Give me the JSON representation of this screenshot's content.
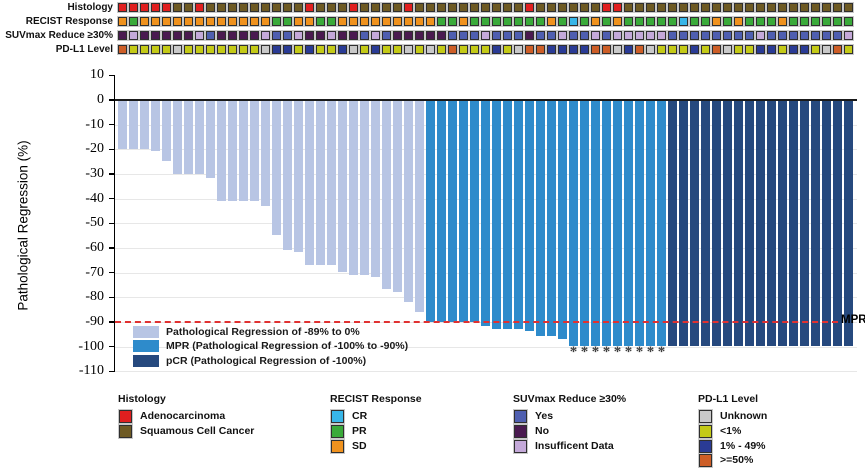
{
  "figure": {
    "y_axis_title": "Pathological Regression (%)",
    "mpr_line_label": "MPR",
    "asterisk_symbol": "*"
  },
  "tracks": {
    "labels": [
      "Histology",
      "RECIST Response",
      "SUVmax Reduce ≥30%",
      "PD-L1 Level"
    ]
  },
  "colors": {
    "histology": {
      "A": "#e01f1f",
      "S": "#6e5a23"
    },
    "recist": {
      "CR": "#38b6e8",
      "PR": "#3aaa3a",
      "SD": "#f0921e"
    },
    "suvmax": {
      "Y": "#4f5fb0",
      "N": "#4a1a50",
      "I": "#c4a9d9"
    },
    "pdl1": {
      "U": "#c9c9c9",
      "L": "#c4ca17",
      "M": "#2a3b95",
      "H": "#cd5e27"
    },
    "bar_light": "#b8c5e4",
    "bar_mpr": "#2e8bcb",
    "bar_pcr": "#26497e",
    "reference_line": "#e03131",
    "zero_line": "#1a1a1a"
  },
  "chart_data": {
    "type": "bar",
    "title": "",
    "xlabel": "",
    "ylabel": "Pathological Regression (%)",
    "ylim": [
      -110,
      10
    ],
    "yticks": [
      10,
      0,
      -10,
      -20,
      -30,
      -40,
      -50,
      -60,
      -70,
      -80,
      -90,
      -100,
      -110
    ],
    "grid": true,
    "reference_line": {
      "value": -90,
      "label": "MPR",
      "style": "dashed"
    },
    "n_patients": 67,
    "histology": [
      "A",
      "A",
      "A",
      "A",
      "A",
      "S",
      "S",
      "A",
      "S",
      "S",
      "S",
      "S",
      "S",
      "S",
      "S",
      "S",
      "S",
      "A",
      "S",
      "S",
      "S",
      "A",
      "S",
      "S",
      "S",
      "S",
      "A",
      "S",
      "S",
      "S",
      "S",
      "S",
      "S",
      "S",
      "S",
      "S",
      "S",
      "A",
      "S",
      "S",
      "S",
      "S",
      "S",
      "S",
      "A",
      "A",
      "S",
      "S",
      "S",
      "S",
      "S",
      "S",
      "S",
      "S",
      "S",
      "S",
      "S",
      "S",
      "S",
      "S",
      "S",
      "S",
      "S",
      "S",
      "S",
      "S",
      "S"
    ],
    "recist": [
      "SD",
      "PR",
      "SD",
      "SD",
      "SD",
      "SD",
      "SD",
      "SD",
      "SD",
      "SD",
      "SD",
      "SD",
      "SD",
      "SD",
      "PR",
      "PR",
      "SD",
      "SD",
      "PR",
      "PR",
      "SD",
      "SD",
      "SD",
      "SD",
      "SD",
      "SD",
      "SD",
      "SD",
      "SD",
      "PR",
      "PR",
      "SD",
      "PR",
      "PR",
      "PR",
      "PR",
      "PR",
      "PR",
      "PR",
      "SD",
      "PR",
      "CR",
      "PR",
      "SD",
      "PR",
      "SD",
      "PR",
      "PR",
      "PR",
      "PR",
      "PR",
      "CR",
      "PR",
      "PR",
      "SD",
      "PR",
      "SD",
      "PR",
      "PR",
      "PR",
      "SD",
      "PR",
      "PR",
      "PR",
      "PR",
      "PR",
      "PR"
    ],
    "suvmax": [
      "N",
      "I",
      "N",
      "N",
      "N",
      "N",
      "N",
      "I",
      "Y",
      "N",
      "N",
      "N",
      "N",
      "I",
      "Y",
      "Y",
      "I",
      "N",
      "N",
      "I",
      "N",
      "N",
      "Y",
      "I",
      "Y",
      "N",
      "N",
      "N",
      "N",
      "N",
      "Y",
      "Y",
      "Y",
      "I",
      "Y",
      "Y",
      "Y",
      "N",
      "Y",
      "Y",
      "I",
      "Y",
      "Y",
      "I",
      "Y",
      "I",
      "I",
      "I",
      "I",
      "I",
      "Y",
      "Y",
      "Y",
      "Y",
      "Y",
      "Y",
      "Y",
      "Y",
      "I",
      "Y",
      "Y",
      "Y",
      "Y",
      "Y",
      "Y",
      "Y",
      "I"
    ],
    "pdl1": [
      "H",
      "L",
      "L",
      "L",
      "L",
      "U",
      "L",
      "L",
      "L",
      "L",
      "L",
      "L",
      "L",
      "U",
      "M",
      "M",
      "L",
      "M",
      "L",
      "L",
      "M",
      "U",
      "L",
      "M",
      "L",
      "L",
      "U",
      "L",
      "U",
      "L",
      "H",
      "L",
      "L",
      "L",
      "M",
      "L",
      "U",
      "H",
      "H",
      "M",
      "M",
      "M",
      "M",
      "H",
      "H",
      "U",
      "M",
      "H",
      "U",
      "L",
      "L",
      "L",
      "M",
      "L",
      "H",
      "U",
      "L",
      "L",
      "M",
      "M",
      "L",
      "M",
      "M",
      "L",
      "U",
      "H",
      "L"
    ],
    "regression": [
      -20,
      -20,
      -20,
      -21,
      -25,
      -30,
      -30,
      -30,
      -32,
      -41,
      -41,
      -41,
      -41,
      -43,
      -55,
      -61,
      -62,
      -67,
      -67,
      -67,
      -70,
      -71,
      -71,
      -72,
      -77,
      -78,
      -82,
      -86,
      -90,
      -90,
      -90,
      -90,
      -90,
      -92,
      -93,
      -93,
      -93,
      -94,
      -96,
      -96,
      -97,
      -100,
      -100,
      -100,
      -100,
      -100,
      -100,
      -100,
      -100,
      -100,
      -100,
      -100,
      -100,
      -100,
      -100,
      -100,
      -100,
      -100,
      -100,
      -100,
      -100,
      -100,
      -100,
      -100,
      -100,
      -100,
      -100
    ],
    "group": [
      "L",
      "L",
      "L",
      "L",
      "L",
      "L",
      "L",
      "L",
      "L",
      "L",
      "L",
      "L",
      "L",
      "L",
      "L",
      "L",
      "L",
      "L",
      "L",
      "L",
      "L",
      "L",
      "L",
      "L",
      "L",
      "L",
      "L",
      "L",
      "M",
      "M",
      "M",
      "M",
      "M",
      "M",
      "M",
      "M",
      "M",
      "M",
      "M",
      "M",
      "M",
      "M",
      "M",
      "M",
      "M",
      "M",
      "M",
      "M",
      "M",
      "M",
      "P",
      "P",
      "P",
      "P",
      "P",
      "P",
      "P",
      "P",
      "P",
      "P",
      "P",
      "P",
      "P",
      "P",
      "P",
      "P",
      "P"
    ],
    "asterisk_columns": [
      42,
      43,
      44,
      45,
      46,
      47,
      48,
      49,
      50
    ]
  },
  "plot_legend": [
    {
      "label": "Pathological Regression of -89% to 0%",
      "color": "#b8c5e4"
    },
    {
      "label": "MPR (Pathological Regression of -100% to -90%)",
      "color": "#2e8bcb"
    },
    {
      "label": "pCR (Pathological Regression of -100%)",
      "color": "#26497e"
    }
  ],
  "bottom_legends": [
    {
      "title": "Histology",
      "items": [
        {
          "label": "Adenocarcinoma",
          "color": "#e01f1f"
        },
        {
          "label": "Squamous Cell Cancer",
          "color": "#6e5a23"
        }
      ]
    },
    {
      "title": "RECIST Response",
      "items": [
        {
          "label": "CR",
          "color": "#38b6e8"
        },
        {
          "label": "PR",
          "color": "#3aaa3a"
        },
        {
          "label": "SD",
          "color": "#f0921e"
        }
      ]
    },
    {
      "title": "SUVmax Reduce ≥30%",
      "items": [
        {
          "label": "Yes",
          "color": "#4f5fb0"
        },
        {
          "label": "No",
          "color": "#4a1a50"
        },
        {
          "label": "Insufficent Data",
          "color": "#c4a9d9"
        }
      ]
    },
    {
      "title": "PD-L1 Level",
      "items": [
        {
          "label": "Unknown",
          "color": "#c9c9c9"
        },
        {
          "label": "<1%",
          "color": "#c4ca17"
        },
        {
          "label": "1% - 49%",
          "color": "#2a3b95"
        },
        {
          "label": ">=50%",
          "color": "#cd5e27"
        }
      ]
    }
  ]
}
